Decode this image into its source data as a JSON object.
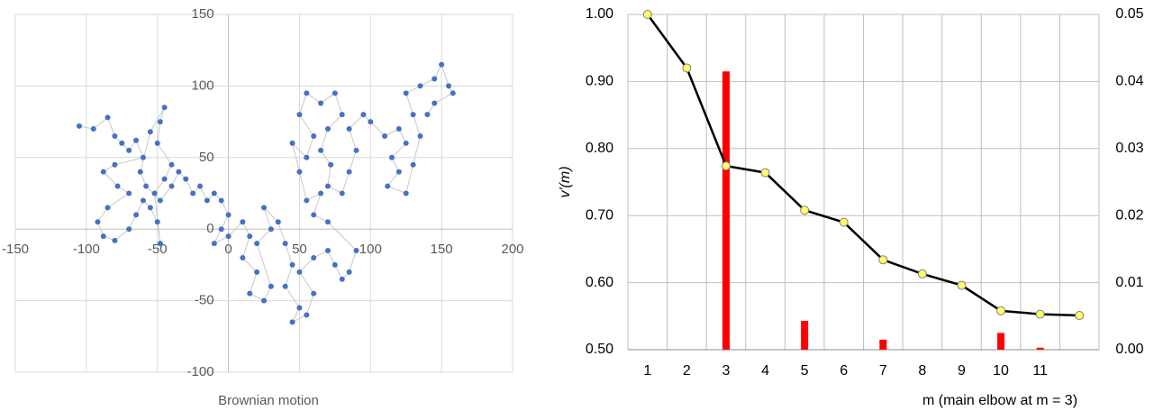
{
  "chart_data": [
    {
      "type": "scatter",
      "title": "Brownian motion",
      "color": "#4472c4",
      "line_color": "#c8c8c8",
      "xlim": [
        -150,
        200
      ],
      "xticks": [
        -150,
        -100,
        -50,
        0,
        50,
        100,
        150,
        200
      ],
      "ylim": [
        -100,
        150
      ],
      "yticks": [
        -100,
        -50,
        0,
        50,
        100,
        150
      ],
      "grid": true,
      "x": [
        -105,
        -95,
        -85,
        -80,
        -75,
        -70,
        -65,
        -60,
        -80,
        -88,
        -78,
        -70,
        -85,
        -92,
        -88,
        -80,
        -70,
        -65,
        -60,
        -55,
        -50,
        -48,
        -52,
        -45,
        -40,
        -50,
        -48,
        -45,
        -55,
        -62,
        -58,
        -48,
        -40,
        -35,
        -30,
        -25,
        -20,
        -15,
        -10,
        -5,
        0,
        -5,
        -10,
        0,
        10,
        15,
        10,
        20,
        15,
        25,
        30,
        20,
        30,
        25,
        35,
        40,
        45,
        40,
        50,
        45,
        55,
        60,
        50,
        60,
        70,
        75,
        80,
        85,
        90,
        70,
        60,
        65,
        55,
        50,
        45,
        55,
        60,
        50,
        55,
        65,
        75,
        80,
        70,
        65,
        72,
        70,
        80,
        85,
        90,
        85,
        95,
        100,
        110,
        120,
        125,
        115,
        120,
        112,
        125,
        130,
        135,
        130,
        125,
        135,
        145,
        150,
        155,
        158,
        145,
        140
      ],
      "y": [
        72,
        70,
        78,
        65,
        60,
        55,
        62,
        50,
        45,
        40,
        30,
        25,
        15,
        5,
        -5,
        -8,
        0,
        10,
        20,
        15,
        5,
        -10,
        25,
        35,
        45,
        60,
        75,
        85,
        68,
        40,
        30,
        20,
        30,
        40,
        35,
        25,
        30,
        20,
        25,
        20,
        10,
        0,
        -10,
        -5,
        5,
        -5,
        -20,
        -30,
        -45,
        -50,
        -40,
        -10,
        0,
        15,
        5,
        -10,
        -25,
        -40,
        -55,
        -65,
        -60,
        -45,
        -30,
        -20,
        -15,
        -25,
        -35,
        -30,
        -15,
        5,
        10,
        25,
        20,
        40,
        60,
        50,
        65,
        80,
        95,
        88,
        95,
        80,
        70,
        55,
        45,
        30,
        25,
        40,
        55,
        70,
        80,
        75,
        65,
        70,
        60,
        50,
        40,
        30,
        25,
        45,
        65,
        80,
        95,
        100,
        105,
        115,
        100,
        95,
        88,
        80
      ]
    },
    {
      "type": "line",
      "categories": [
        1,
        2,
        3,
        4,
        5,
        6,
        7,
        8,
        9,
        10,
        11,
        null
      ],
      "x_label": "m (main elbow at m = 3)",
      "y_label": "v'(m)",
      "ylim": [
        0.5,
        1.0
      ],
      "yticks": [
        {
          "value": 0.5,
          "label": "0.50"
        },
        {
          "value": 0.6,
          "label": "0.60"
        },
        {
          "value": 0.7,
          "label": "0.70"
        },
        {
          "value": 0.8,
          "label": "0.80"
        },
        {
          "value": 0.9,
          "label": "0.90"
        },
        {
          "value": 1.0,
          "label": "1.00"
        }
      ],
      "y2lim": [
        0,
        0.05
      ],
      "y2ticks": [
        {
          "value": 0,
          "label": "0.00"
        },
        {
          "value": 0.01,
          "label": "0.01"
        },
        {
          "value": 0.02,
          "label": "0.02"
        },
        {
          "value": 0.03,
          "label": "0.03"
        },
        {
          "value": 0.04,
          "label": "0.04"
        },
        {
          "value": 0.05,
          "label": "0.05"
        }
      ],
      "grid": true,
      "series": [
        {
          "type": "bar",
          "axis": "y2",
          "color": "#ff0000",
          "values": [
            null,
            null,
            0.0415,
            null,
            0.0043,
            null,
            0.0015,
            null,
            null,
            0.0025,
            0.0003,
            null
          ]
        },
        {
          "type": "line",
          "color": "#000000",
          "marker_color": "#ffff66",
          "values": [
            1.0,
            0.92,
            0.774,
            0.764,
            0.708,
            0.69,
            0.634,
            0.613,
            0.596,
            0.558,
            0.553,
            0.551
          ]
        }
      ]
    }
  ]
}
